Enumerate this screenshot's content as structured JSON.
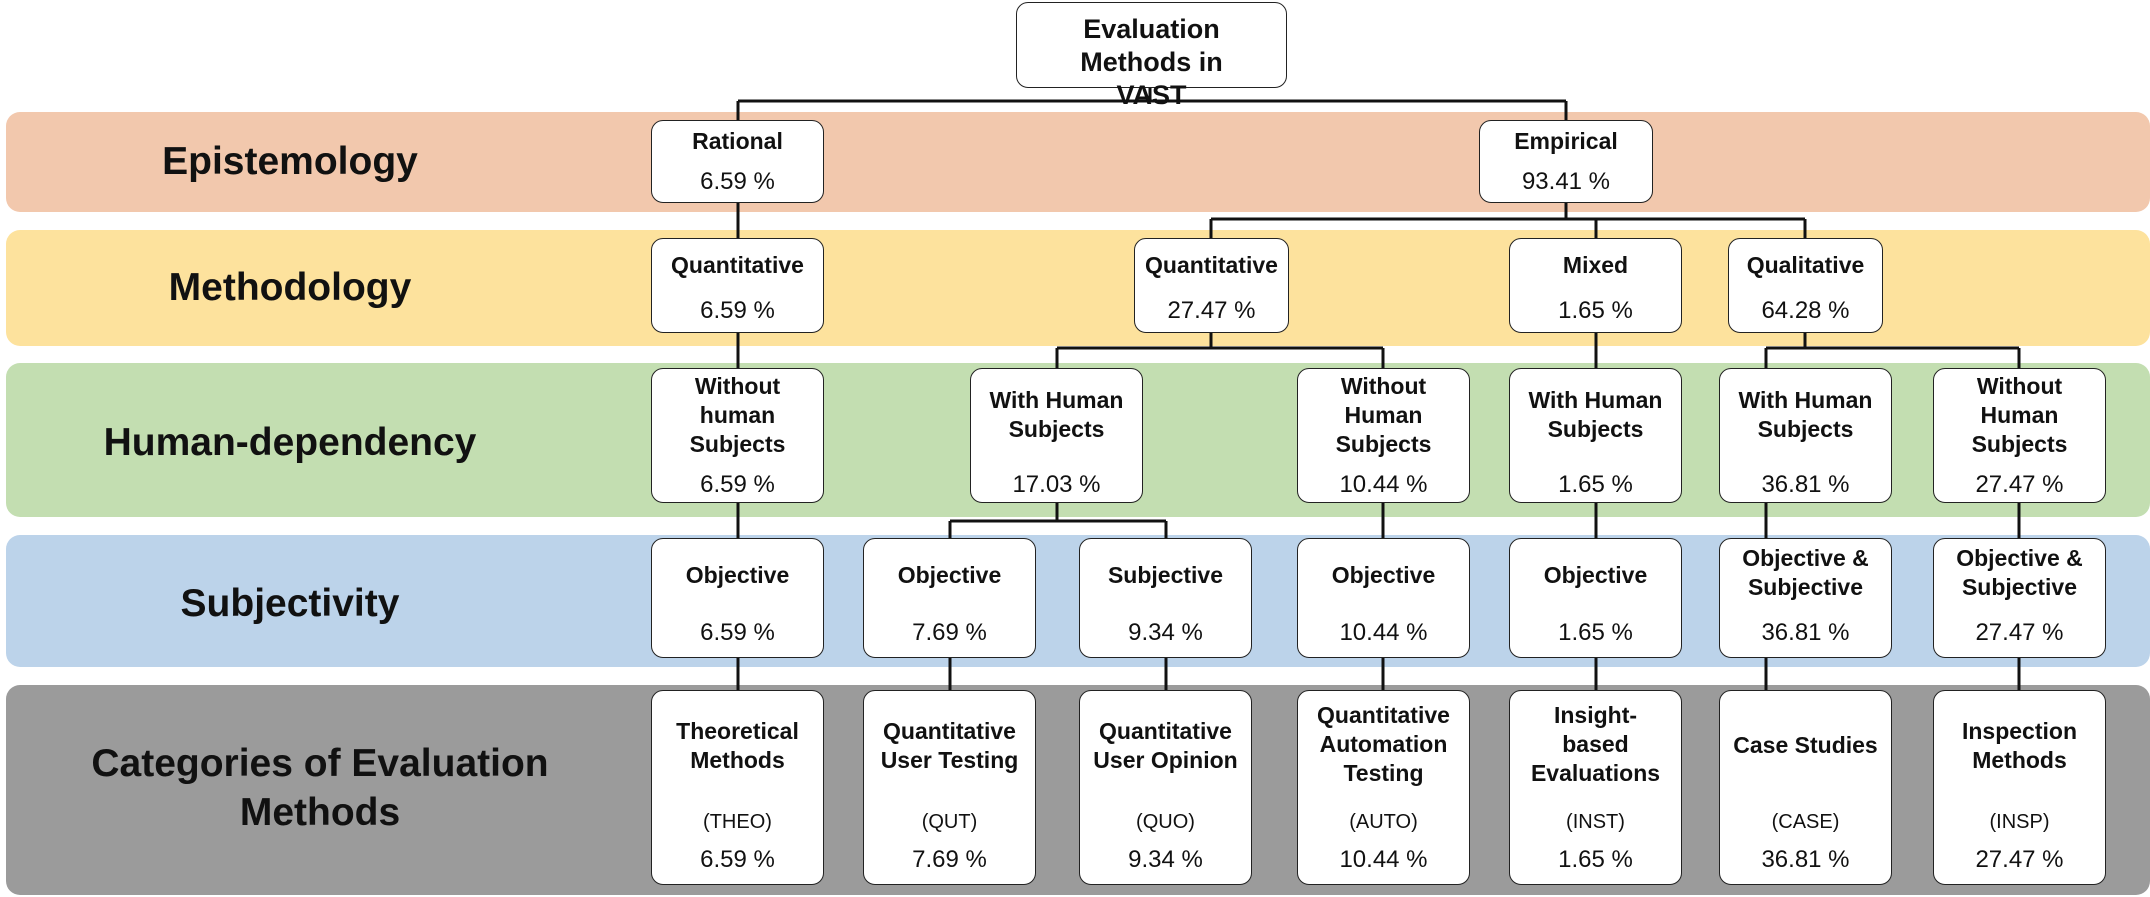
{
  "colors": {
    "epistemology": "#f2c8ad",
    "methodology": "#fde29d",
    "human_dependency": "#c3deb1",
    "subjectivity": "#bcd3ea",
    "categories": "#9b9b9b"
  },
  "bands": {
    "epistemology": "Epistemology",
    "methodology": "Methodology",
    "human_dependency": "Human-dependency",
    "subjectivity": "Subjectivity",
    "categories": "Categories of Evaluation Methods"
  },
  "root": {
    "title": "Evaluation Methods in VAST"
  },
  "epistemology": {
    "rational": {
      "title": "Rational",
      "pct": "6.59 %"
    },
    "empirical": {
      "title": "Empirical",
      "pct": "93.41 %"
    }
  },
  "methodology": {
    "rational_quant": {
      "title": "Quantitative",
      "pct": "6.59 %"
    },
    "quant": {
      "title": "Quantitative",
      "pct": "27.47 %"
    },
    "mixed": {
      "title": "Mixed",
      "pct": "1.65 %"
    },
    "qual": {
      "title": "Qualitative",
      "pct": "64.28 %"
    }
  },
  "human": {
    "h1": {
      "title": "Without human Subjects",
      "pct": "6.59 %"
    },
    "h2": {
      "title": "With Human Subjects",
      "pct": "17.03 %"
    },
    "h3": {
      "title": "Without Human Subjects",
      "pct": "10.44 %"
    },
    "h4": {
      "title": "With Human Subjects",
      "pct": "1.65 %"
    },
    "h5": {
      "title": "With Human Subjects",
      "pct": "36.81 %"
    },
    "h6": {
      "title": "Without Human Subjects",
      "pct": "27.47 %"
    }
  },
  "subjectivity": {
    "s1": {
      "title": "Objective",
      "pct": "6.59 %"
    },
    "s2": {
      "title": "Objective",
      "pct": "7.69 %"
    },
    "s3": {
      "title": "Subjective",
      "pct": "9.34 %"
    },
    "s4": {
      "title": "Objective",
      "pct": "10.44 %"
    },
    "s5": {
      "title": "Objective",
      "pct": "1.65 %"
    },
    "s6": {
      "title": "Objective & Subjective",
      "pct": "36.81 %"
    },
    "s7": {
      "title": "Objective & Subjective",
      "pct": "27.47 %"
    }
  },
  "categories": {
    "c1": {
      "title": "Theoretical Methods",
      "abbr": "(THEO)",
      "pct": "6.59 %"
    },
    "c2": {
      "title": "Quantitative User Testing",
      "abbr": "(QUT)",
      "pct": "7.69 %"
    },
    "c3": {
      "title": "Quantitative User Opinion",
      "abbr": "(QUO)",
      "pct": "9.34 %"
    },
    "c4": {
      "title": "Quantitative Automation Testing",
      "abbr": "(AUTO)",
      "pct": "10.44 %"
    },
    "c5": {
      "title": "Insight-based Evaluations",
      "abbr": "(INST)",
      "pct": "1.65 %"
    },
    "c6": {
      "title": "Case Studies",
      "abbr": "(CASE)",
      "pct": "36.81 %"
    },
    "c7": {
      "title": "Inspection Methods",
      "abbr": "(INSP)",
      "pct": "27.47 %"
    }
  }
}
